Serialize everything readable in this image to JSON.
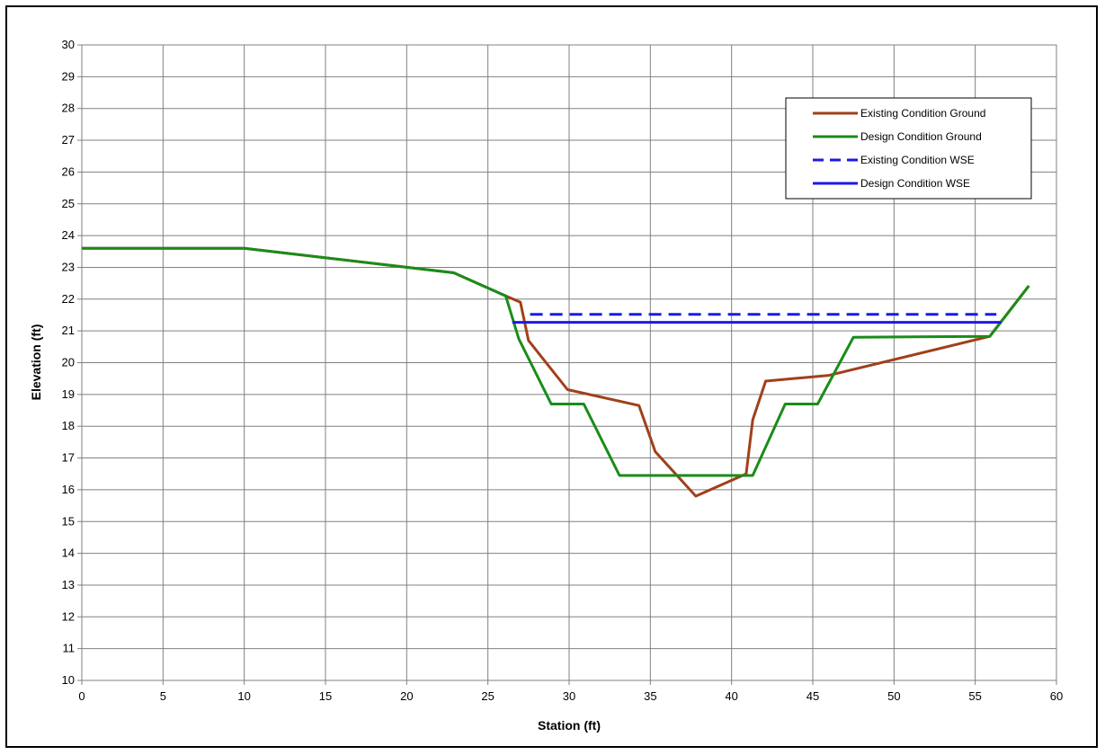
{
  "chart_data": {
    "type": "line",
    "title": "",
    "xlabel": "Station (ft)",
    "ylabel": "Elevation (ft)",
    "xlim": [
      0,
      60
    ],
    "ylim": [
      10,
      30
    ],
    "xticks": [
      0,
      5,
      10,
      15,
      20,
      25,
      30,
      35,
      40,
      45,
      50,
      55,
      60
    ],
    "yticks": [
      10,
      11,
      12,
      13,
      14,
      15,
      16,
      17,
      18,
      19,
      20,
      21,
      22,
      23,
      24,
      25,
      26,
      27,
      28,
      29,
      30
    ],
    "grid": true,
    "legend_position": "top-right",
    "series": [
      {
        "name": "Existing Condition Ground",
        "color": "#A0401A",
        "style": "solid",
        "points": [
          [
            0,
            23.6
          ],
          [
            10,
            23.6
          ],
          [
            20,
            23.0
          ],
          [
            22.9,
            22.83
          ],
          [
            26.1,
            22.1
          ],
          [
            27,
            21.9
          ],
          [
            27.5,
            20.7
          ],
          [
            29.9,
            19.15
          ],
          [
            34.3,
            18.65
          ],
          [
            35.3,
            17.2
          ],
          [
            37.8,
            15.8
          ],
          [
            40.9,
            16.5
          ],
          [
            41.3,
            18.2
          ],
          [
            42.1,
            19.42
          ],
          [
            46.0,
            19.6
          ],
          [
            55.9,
            20.83
          ],
          [
            58.3,
            22.42
          ]
        ]
      },
      {
        "name": "Design Condition Ground",
        "color": "#1A8C1A",
        "style": "solid",
        "points": [
          [
            0,
            23.6
          ],
          [
            10,
            23.6
          ],
          [
            20,
            23.0
          ],
          [
            22.9,
            22.83
          ],
          [
            26.1,
            22.1
          ],
          [
            26.9,
            20.75
          ],
          [
            28.9,
            18.7
          ],
          [
            30.9,
            18.7
          ],
          [
            33.1,
            16.45
          ],
          [
            41.3,
            16.45
          ],
          [
            43.3,
            18.7
          ],
          [
            45.3,
            18.7
          ],
          [
            47.5,
            20.8
          ],
          [
            55.9,
            20.83
          ],
          [
            58.3,
            22.42
          ]
        ]
      },
      {
        "name": "Existing Condition WSE",
        "color": "#1A1AE6",
        "style": "dashed",
        "points": [
          [
            27.6,
            21.52
          ],
          [
            56.3,
            21.52
          ]
        ]
      },
      {
        "name": "Design Condition WSE",
        "color": "#1A1AE6",
        "style": "solid",
        "points": [
          [
            26.5,
            21.27
          ],
          [
            56.6,
            21.27
          ]
        ]
      }
    ]
  }
}
